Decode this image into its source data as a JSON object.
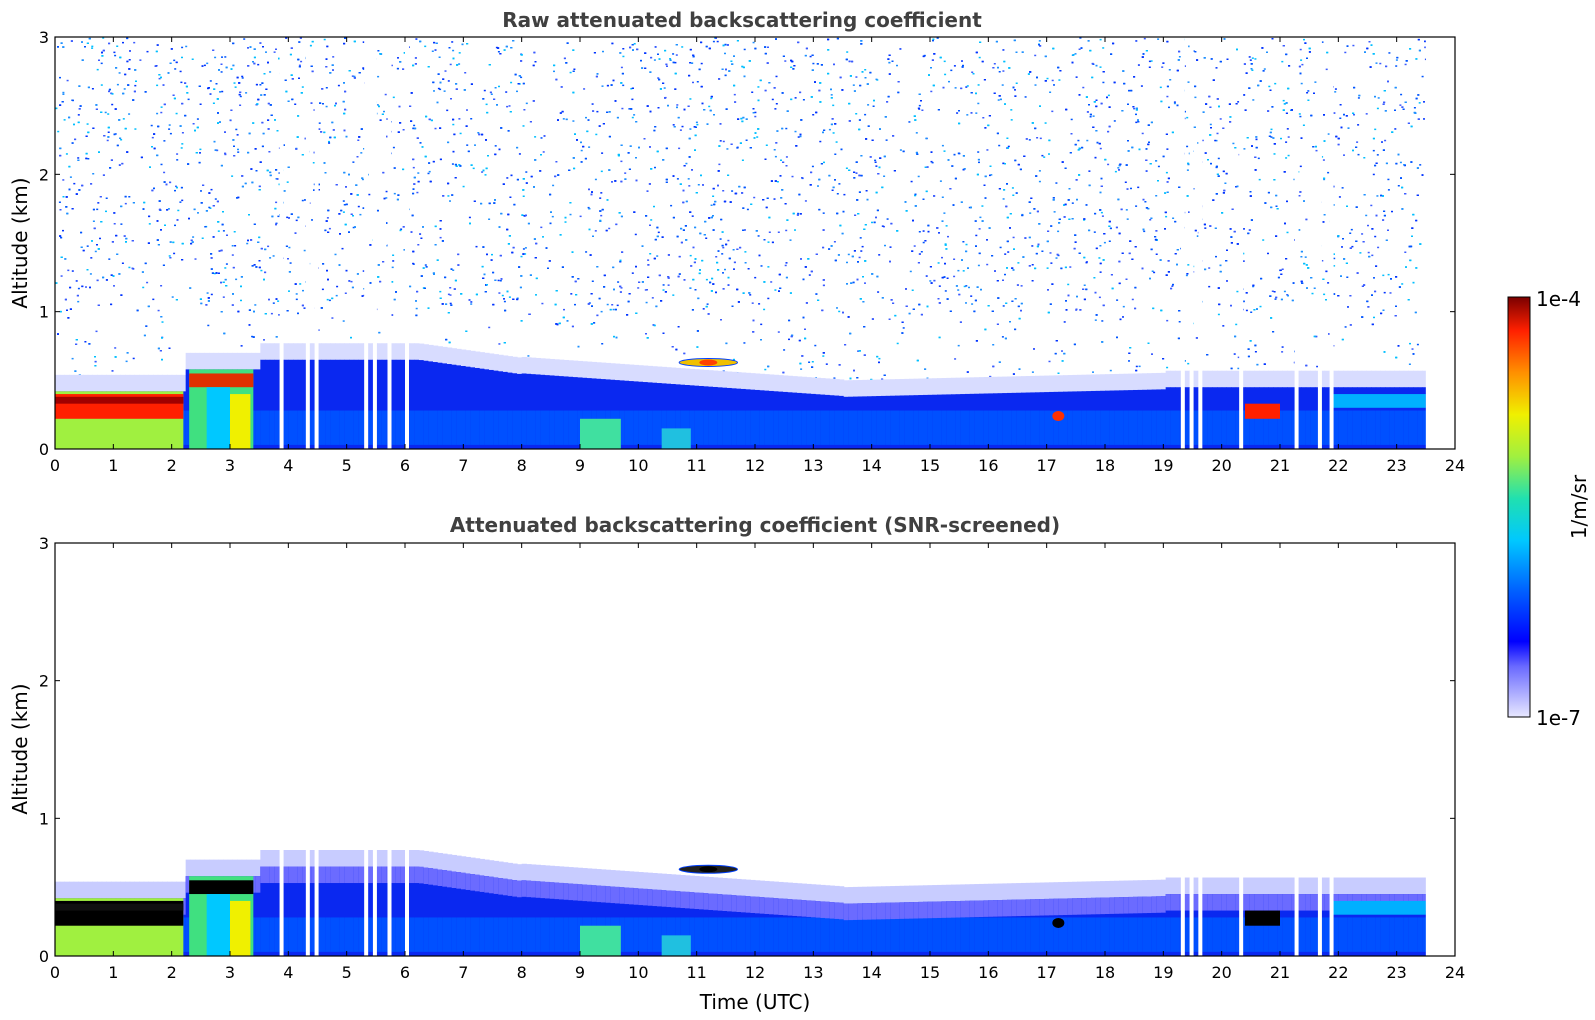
{
  "chart_data": [
    {
      "type": "heatmap",
      "title": "Raw attenuated backscattering coefficient",
      "xlabel": "",
      "ylabel": "Altitude (km)",
      "x_ticks": [
        "0",
        "1",
        "2",
        "3",
        "4",
        "5",
        "6",
        "7",
        "8",
        "9",
        "10",
        "11",
        "12",
        "13",
        "14",
        "15",
        "16",
        "17",
        "18",
        "19",
        "20",
        "21",
        "22",
        "23",
        "24"
      ],
      "y_ticks": [
        "0",
        "1",
        "2",
        "3"
      ],
      "xlim": [
        0,
        24
      ],
      "ylim": [
        0,
        3
      ],
      "data_end_hour": 23.5,
      "noise": true,
      "data_gaps_hours": [
        3.85,
        4.3,
        4.45,
        5.3,
        5.45,
        5.7,
        6.0,
        19.3,
        19.45,
        19.6,
        20.3,
        21.25,
        21.65,
        21.85
      ]
    },
    {
      "type": "heatmap",
      "title": "Attenuated backscattering coefficient (SNR-screened)",
      "xlabel": "Time (UTC)",
      "ylabel": "Altitude (km)",
      "x_ticks": [
        "0",
        "1",
        "2",
        "3",
        "4",
        "5",
        "6",
        "7",
        "8",
        "9",
        "10",
        "11",
        "12",
        "13",
        "14",
        "15",
        "16",
        "17",
        "18",
        "19",
        "20",
        "21",
        "22",
        "23",
        "24"
      ],
      "y_ticks": [
        "0",
        "1",
        "2",
        "3"
      ],
      "xlim": [
        0,
        24
      ],
      "ylim": [
        0,
        3
      ],
      "data_end_hour": 23.5,
      "noise": false,
      "data_gaps_hours": [
        3.85,
        4.3,
        4.45,
        5.3,
        5.45,
        5.7,
        6.0,
        19.3,
        19.45,
        19.6,
        20.3,
        21.25,
        21.65,
        21.85
      ]
    }
  ],
  "colorbar": {
    "max_label": "1e-4",
    "min_label": "1e-7",
    "unit": "1/m/sr"
  }
}
